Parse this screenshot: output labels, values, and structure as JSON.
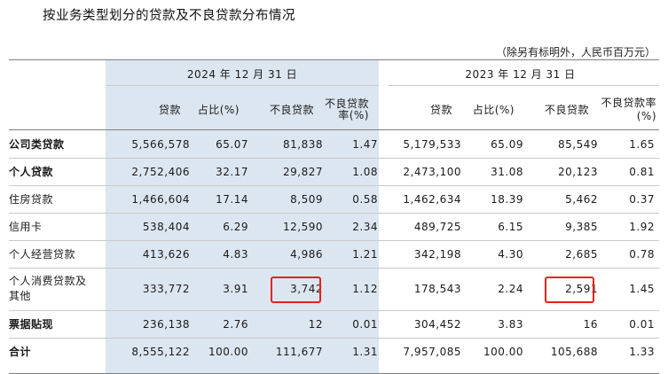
{
  "title": "按业务类型划分的贷款及不良贷款分布情况",
  "note": "（除另有标明外，人民币百万元）",
  "periods": {
    "current": "2024 年 12 月 31 日",
    "prior": "2023 年 12 月 31 日"
  },
  "columns": {
    "loans": "贷款",
    "share": "占比(%)",
    "npl": "不良贷款",
    "npl_ratio_current": "不良贷款率(%)",
    "npl_ratio_current_line1": "不良贷款",
    "npl_ratio_current_line2": "率(%)",
    "npl_ratio_prior": "不良贷款率(%)"
  },
  "rows": [
    {
      "label": "公司类贷款",
      "bold": true,
      "values": [
        "5,566,578",
        "65.07",
        "81,838",
        "1.47",
        "5,179,533",
        "65.09",
        "85,549",
        "1.65"
      ]
    },
    {
      "label": "个人贷款",
      "bold": true,
      "values": [
        "2,752,406",
        "32.17",
        "29,827",
        "1.08",
        "2,473,100",
        "31.08",
        "20,123",
        "0.81"
      ]
    },
    {
      "label": "住房贷款",
      "bold": false,
      "values": [
        "1,466,604",
        "17.14",
        "8,509",
        "0.58",
        "1,462,634",
        "18.39",
        "5,462",
        "0.37"
      ]
    },
    {
      "label": "信用卡",
      "bold": false,
      "values": [
        "538,404",
        "6.29",
        "12,590",
        "2.34",
        "489,725",
        "6.15",
        "9,385",
        "1.92"
      ]
    },
    {
      "label": "个人经营贷款",
      "bold": false,
      "values": [
        "413,626",
        "4.83",
        "4,986",
        "1.21",
        "342,198",
        "4.30",
        "2,685",
        "0.78"
      ]
    },
    {
      "label": "个人消费贷款及其他",
      "label_line1": "个人消费贷款及",
      "label_line2": "其他",
      "bold": false,
      "values": [
        "333,772",
        "3.91",
        "3,742",
        "1.12",
        "178,543",
        "2.24",
        "2,591",
        "1.45"
      ]
    },
    {
      "label": "票据贴现",
      "bold": true,
      "values": [
        "236,138",
        "2.76",
        "12",
        "0.01",
        "304,452",
        "3.83",
        "16",
        "0.01"
      ]
    },
    {
      "label": "合计",
      "bold": true,
      "values": [
        "8,555,122",
        "100.00",
        "111,677",
        "1.31",
        "7,957,085",
        "100.00",
        "105,688",
        "1.33"
      ]
    }
  ],
  "highlight_color": "#e3241b",
  "shade_color": "#dce6f1"
}
